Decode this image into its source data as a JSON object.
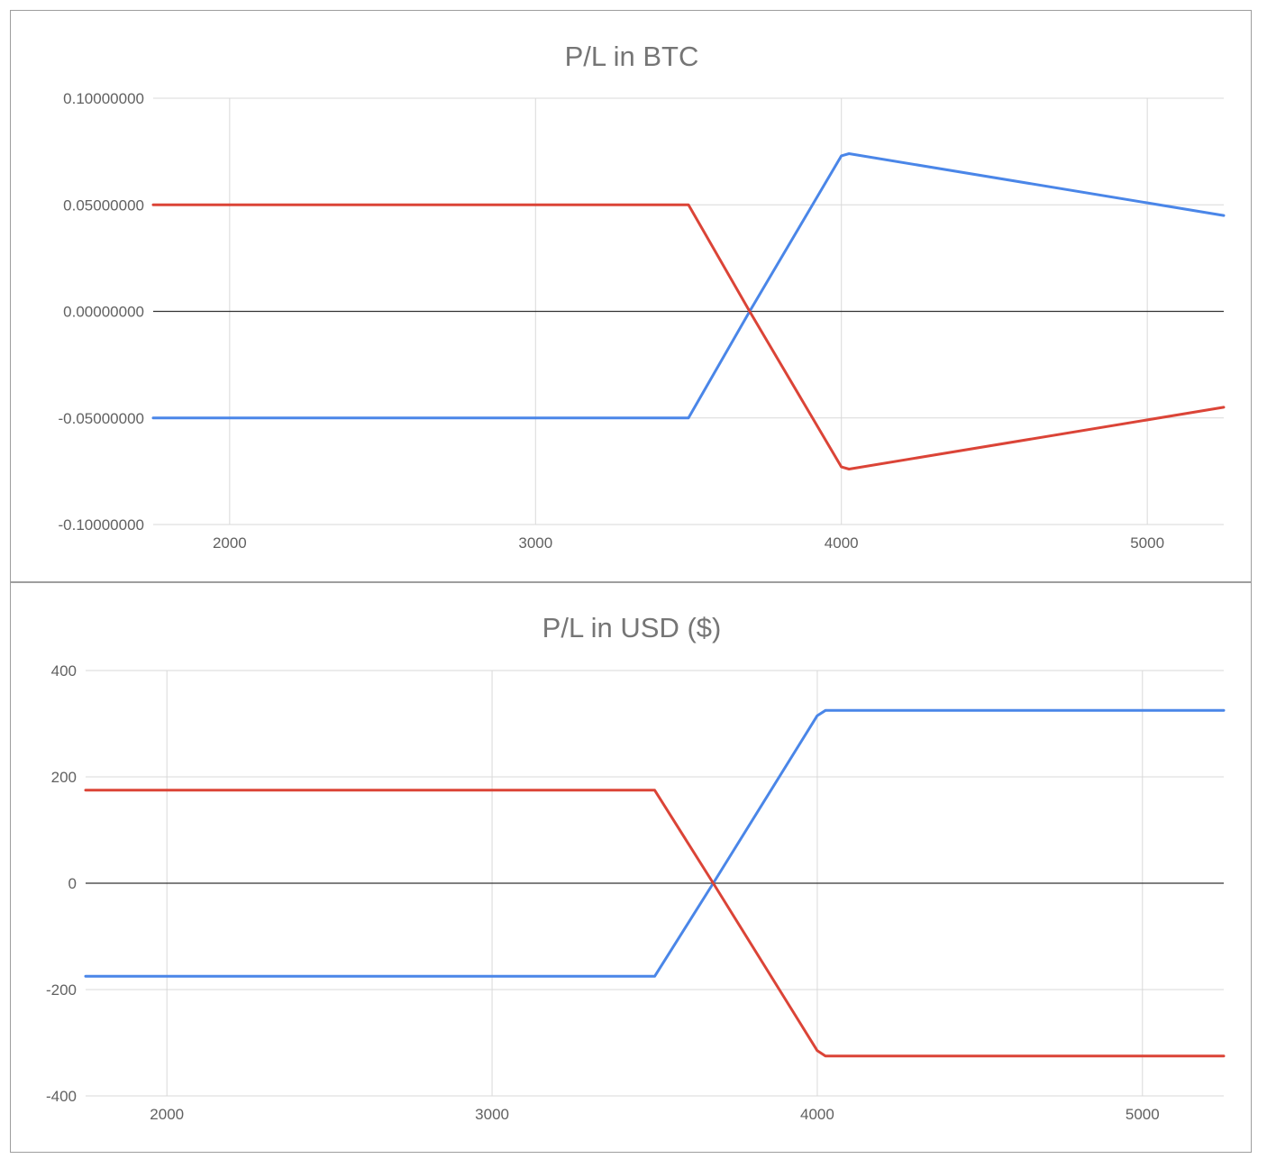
{
  "chart_data": [
    {
      "type": "line",
      "title": "P/L in BTC",
      "xlabel": "",
      "ylabel": "",
      "xlim": [
        1750,
        5250
      ],
      "ylim": [
        -0.1,
        0.1
      ],
      "x_ticks": [
        2000,
        3000,
        4000,
        5000
      ],
      "x_tick_labels": [
        "2000",
        "3000",
        "4000",
        "5000"
      ],
      "y_ticks": [
        -0.1,
        -0.05,
        0,
        0.05,
        0.1
      ],
      "y_tick_labels": [
        "-0.10000000",
        "-0.05000000",
        "0.00000000",
        "0.05000000",
        "0.10000000"
      ],
      "grid": true,
      "series": [
        {
          "color": "#4a86e8",
          "x": [
            1750,
            3500,
            3700,
            4000,
            4025,
            5250
          ],
          "y": [
            -0.05,
            -0.05,
            0.0,
            0.073,
            0.074,
            0.045
          ]
        },
        {
          "color": "#db4437",
          "x": [
            1750,
            3500,
            3700,
            4000,
            4025,
            5250
          ],
          "y": [
            0.05,
            0.05,
            0.0,
            -0.073,
            -0.074,
            -0.045
          ]
        }
      ]
    },
    {
      "type": "line",
      "title": "P/L in USD ($)",
      "xlabel": "",
      "ylabel": "",
      "xlim": [
        1750,
        5250
      ],
      "ylim": [
        -400,
        400
      ],
      "x_ticks": [
        2000,
        3000,
        4000,
        5000
      ],
      "x_tick_labels": [
        "2000",
        "3000",
        "4000",
        "5000"
      ],
      "y_ticks": [
        -400,
        -200,
        0,
        200,
        400
      ],
      "y_tick_labels": [
        "-400",
        "-200",
        "0",
        "200",
        "400"
      ],
      "grid": true,
      "series": [
        {
          "color": "#4a86e8",
          "x": [
            1750,
            3500,
            3680,
            4000,
            4025,
            5250
          ],
          "y": [
            -175,
            -175,
            0,
            315,
            325,
            325
          ]
        },
        {
          "color": "#db4437",
          "x": [
            1750,
            3500,
            3680,
            4000,
            4025,
            5250
          ],
          "y": [
            175,
            175,
            0,
            -315,
            -325,
            -325
          ]
        }
      ]
    }
  ]
}
